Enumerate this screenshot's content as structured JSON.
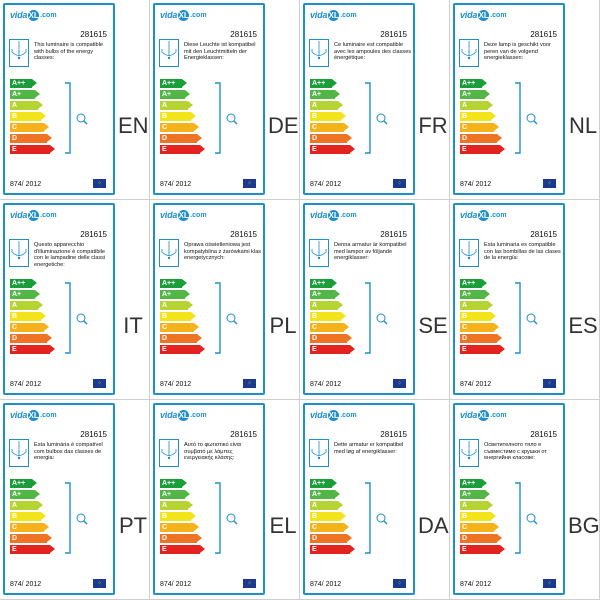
{
  "brand": {
    "name": "vida",
    "mark": "XL",
    "domain": ".com"
  },
  "product_code": "281615",
  "regulation": "874/ 2012",
  "classes": [
    {
      "label": "A++",
      "color": "#1a9e3a"
    },
    {
      "label": "A+",
      "color": "#52b747"
    },
    {
      "label": "A",
      "color": "#b5d434"
    },
    {
      "label": "B",
      "color": "#f2e31b"
    },
    {
      "label": "C",
      "color": "#f6b21b"
    },
    {
      "label": "D",
      "color": "#ee7322"
    },
    {
      "label": "E",
      "color": "#e2231f"
    }
  ],
  "labels": [
    {
      "lang": "EN",
      "text": "This luminaire is compatible with bulbs of the energy classes:"
    },
    {
      "lang": "DE",
      "text": "Diese Leuchte ist kompatibel mit den Leuchtmitteln der Energieklassen:"
    },
    {
      "lang": "FR",
      "text": "Ce luminaire est compatible avec les ampoules des classes énergétique:"
    },
    {
      "lang": "NL",
      "text": "Deze lamp is geschikt voor peren van de volgend energieklassen:"
    },
    {
      "lang": "IT",
      "text": "Questo apparecchio d'illuminazione è compatibile con le lampadine delle classi energetiche:"
    },
    {
      "lang": "PL",
      "text": "Oprawa oświetleniowa jest kompatybilna z żarówkami klas energetycznych:"
    },
    {
      "lang": "SE",
      "text": "Denna armatur är kompatibel med lampor av följande energiklasser:"
    },
    {
      "lang": "ES",
      "text": "Esta luminaria es compatible con las bombillas de las clases de la energía:"
    },
    {
      "lang": "PT",
      "text": "Esta luminária é compatível com bulbos das classes de energia:"
    },
    {
      "lang": "EL",
      "text": "Αυτό το φωτιστικό είναι συμβατό με λάμπες ενεργειακής κλάσης:"
    },
    {
      "lang": "DA",
      "text": "Dette armatur er kompatibel med løg af energiklasser:"
    },
    {
      "lang": "BG",
      "text": "Осветителното тяло е съвместимо с крушки от енергийни класове:"
    }
  ]
}
